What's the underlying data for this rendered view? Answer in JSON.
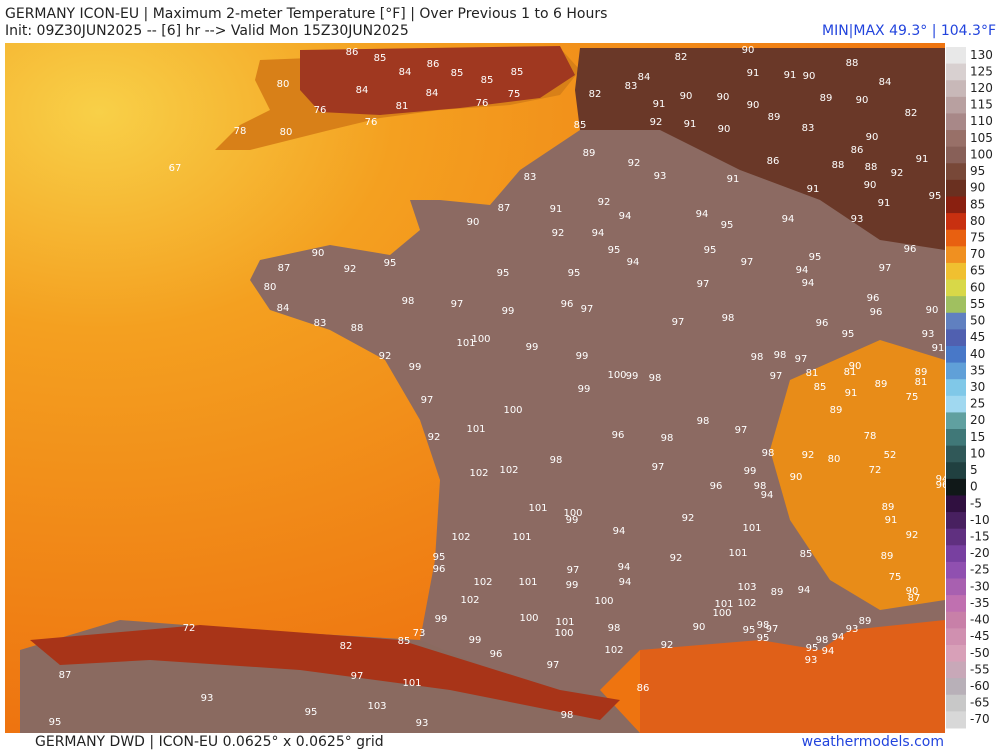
{
  "header": {
    "title": "GERMANY ICON-EU | Maximum 2-meter Temperature [°F] | Over Previous 1 to 6 Hours",
    "init": "Init: 09Z30JUN2025 -- [6] hr --> Valid Mon 15Z30JUN2025",
    "minmax": "MIN|MAX 49.3° | 104.3°F"
  },
  "footer": {
    "source": "GERMANY DWD | ICON-EU 0.0625° x 0.0625° grid",
    "site": "weathermodels.com"
  },
  "colorbar": {
    "ticks": [
      130,
      125,
      120,
      115,
      110,
      105,
      100,
      95,
      90,
      85,
      80,
      75,
      70,
      65,
      60,
      55,
      50,
      45,
      40,
      35,
      30,
      25,
      20,
      15,
      10,
      5,
      0,
      -5,
      -10,
      -15,
      -20,
      -25,
      -30,
      -35,
      -40,
      -45,
      -50,
      -55,
      -60,
      -65,
      -70
    ],
    "colors": [
      "#e8e8e8",
      "#d8d0d0",
      "#c8b8b8",
      "#b8a0a0",
      "#a88888",
      "#987068",
      "#886058",
      "#784838",
      "#6a3020",
      "#8a2010",
      "#c83010",
      "#e86010",
      "#f09020",
      "#f0c030",
      "#d8d848",
      "#a0c060",
      "#6080c0",
      "#5060b0",
      "#4878c8",
      "#60a0d8",
      "#80c8e8",
      "#a0d8f0",
      "#60a0a0",
      "#407878",
      "#305858",
      "#204040",
      "#101818",
      "#301040",
      "#482060",
      "#603080",
      "#7840a0",
      "#9050b0",
      "#a860b0",
      "#c070b0",
      "#c880a8",
      "#d090b0",
      "#d8a0b8",
      "#c8a8b8",
      "#b8b0b8",
      "#c8c8c8",
      "#d8d8d8"
    ]
  },
  "map": {
    "station_values": [
      85,
      86,
      86,
      85,
      85,
      85,
      84,
      84,
      84,
      81,
      76,
      75,
      80,
      76,
      80,
      78,
      67,
      76,
      82,
      83,
      84,
      82,
      90,
      91,
      91,
      90,
      89,
      90,
      84,
      88,
      82,
      91,
      90,
      90,
      90,
      89,
      83,
      90,
      86,
      88,
      88,
      91,
      92,
      91,
      90,
      85,
      89,
      92,
      93,
      91,
      86,
      91,
      90,
      92,
      95,
      83,
      87,
      91,
      92,
      94,
      94,
      95,
      94,
      93,
      91,
      90,
      92,
      95,
      90,
      87,
      80,
      84,
      83,
      88,
      92,
      99,
      98,
      97,
      99,
      96,
      97,
      95,
      95,
      95,
      94,
      92,
      94,
      95,
      97,
      97,
      97,
      98,
      94,
      95,
      94,
      97,
      96,
      96,
      96,
      96,
      95,
      101,
      100,
      99,
      99,
      100,
      99,
      98,
      98,
      98,
      97,
      97,
      97,
      100,
      99,
      98,
      97,
      92,
      101,
      96,
      98,
      102,
      102,
      98,
      97,
      98,
      99,
      98,
      96,
      90,
      92,
      80,
      94,
      102,
      101,
      100,
      99,
      94,
      92,
      101,
      101,
      95,
      96,
      102,
      101,
      97,
      94,
      99,
      94,
      102,
      100,
      101,
      92,
      100,
      101,
      100,
      98,
      99,
      99,
      96,
      97,
      102,
      92,
      90,
      103,
      101,
      100,
      102,
      89,
      94,
      85,
      89,
      75,
      90,
      87,
      89,
      93,
      94,
      98,
      95,
      93,
      94,
      97,
      95,
      98,
      95,
      81,
      85,
      81,
      91,
      89,
      89,
      81,
      75,
      89,
      78,
      72,
      52,
      92,
      89,
      91,
      94,
      96,
      90,
      91,
      90,
      93,
      87,
      95,
      93,
      95,
      97,
      101,
      103,
      93,
      98,
      86,
      82,
      85,
      73,
      72
    ]
  }
}
